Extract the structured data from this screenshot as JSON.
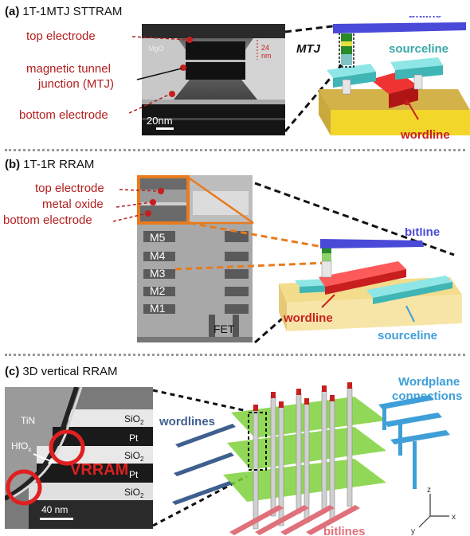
{
  "panel_a": {
    "letter": "(a)",
    "title": "1T-1MTJ STTRAM",
    "labels": {
      "top_electrode": "top electrode",
      "mtj_line1": "magnetic tunnel",
      "mtj_line2": "junction (MTJ)",
      "bottom_electrode": "bottom electrode"
    },
    "micro": {
      "mgo": "MgO",
      "dim_value": "24",
      "dim_unit": "nm",
      "scale": "20nm"
    },
    "schematic": {
      "bitline": "bitline",
      "mtj": "MTJ",
      "sourceline": "sourceline",
      "wordline": "wordline"
    }
  },
  "panel_b": {
    "letter": "(b)",
    "title": "1T-1R RRAM",
    "labels": {
      "top_electrode": "top electrode",
      "metal_oxide": "metal oxide",
      "bottom_electrode": "bottom electrode"
    },
    "micro": {
      "m5": "M5",
      "m4": "M4",
      "m3": "M3",
      "m2": "M2",
      "m1": "M1",
      "fet": "FET"
    },
    "schematic": {
      "bitline": "bitline",
      "wordline": "wordline",
      "sourceline": "sourceline"
    }
  },
  "panel_c": {
    "letter": "(c)",
    "title": "3D vertical RRAM",
    "micro": {
      "tin": "TiN",
      "hfox": "HfO",
      "hfox_sub": "x",
      "vrram": "VRRAM",
      "sio2": "SiO",
      "sio2_sub": "2",
      "pt": "Pt",
      "scale": "40 nm"
    },
    "schematic": {
      "wordplane_line1": "Wordplane",
      "wordplane_line2": "connections",
      "wordlines": "wordlines",
      "bitlines": "bitlines",
      "axis_z": "z",
      "axis_y": "y",
      "axis_x": "x"
    }
  },
  "colors": {
    "label_red": "#b41e1e",
    "bitline_blue": "#4a4ad8",
    "sourceline_teal": "#3aa8a8",
    "wordline_red": "#c81e1e",
    "wordline_steelblue": "#3f5f8f",
    "bitline_salmon": "#e0707a",
    "plane_green": "#7fd13b",
    "connection_blue": "#3f9fd8",
    "box_orange": "#e87b1e"
  }
}
